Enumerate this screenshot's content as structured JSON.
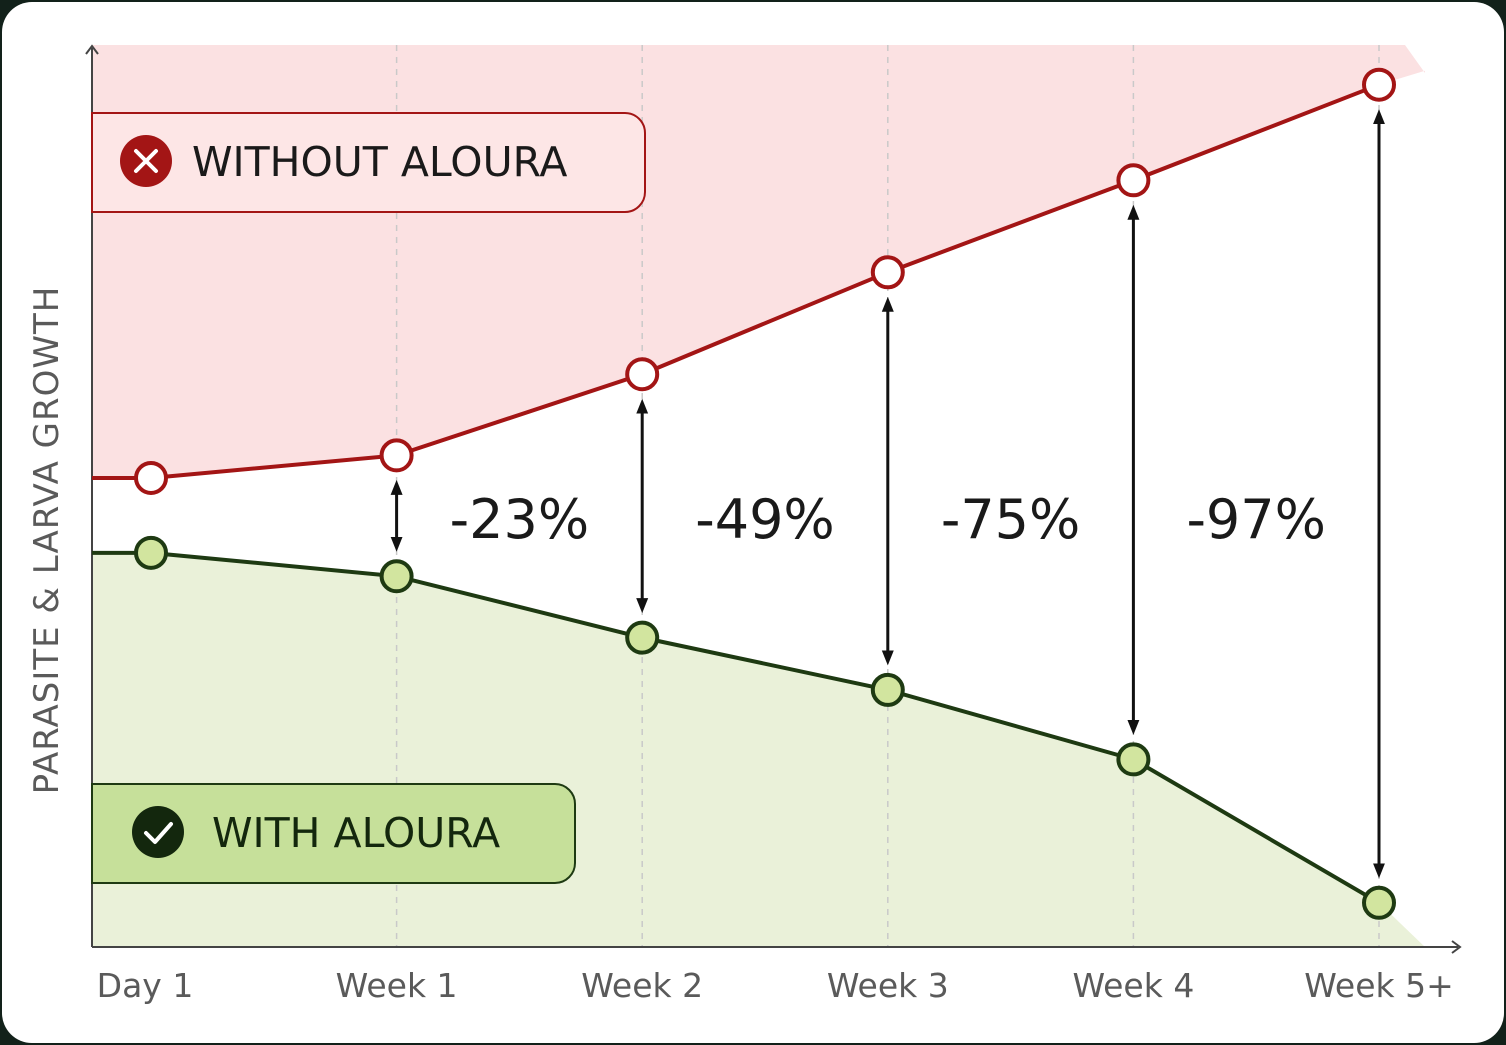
{
  "chart_data": {
    "type": "line",
    "y_label": "PARASITE & LARVA GROWTH",
    "categories": [
      "Day 1",
      "Week 1",
      "Week 2",
      "Week 3",
      "Week 4",
      "Week 5+"
    ],
    "series": [
      {
        "name": "WITHOUT ALOURA",
        "color": "#a31515",
        "values": [
          52,
          54.5,
          63.5,
          74.8,
          85,
          95.6
        ]
      },
      {
        "name": "WITH ALOURA",
        "color": "#1e3a12",
        "values": [
          43.7,
          41.1,
          34.3,
          28.5,
          20.8,
          4.9
        ]
      }
    ],
    "annotations": [
      "-23%",
      "-49%",
      "-75%",
      "-97%"
    ],
    "ylim": [
      0,
      100
    ]
  }
}
